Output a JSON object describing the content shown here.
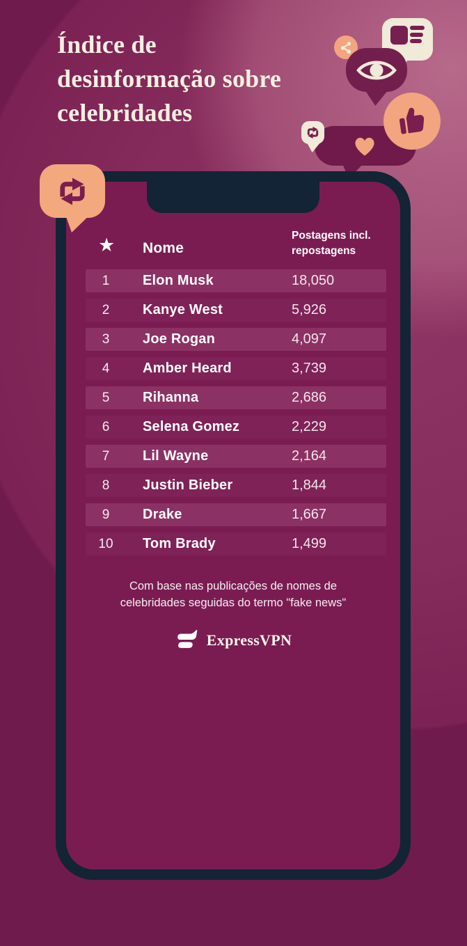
{
  "page": {
    "title_lines": [
      "Índice de",
      "desinformação sobre",
      "celebridades"
    ],
    "footnote_lines": [
      "Com base nas publicações de nomes de",
      "celebridades seguidas do termo \"fake news\""
    ],
    "brand_name": "ExpressVPN"
  },
  "table_header": {
    "name_label": "Nome",
    "value_label_line1": "Postagens incl.",
    "value_label_line2": "repostagens"
  },
  "chart_data": {
    "type": "table",
    "title": "Índice de desinformação sobre celebridades",
    "columns": [
      "Rank",
      "Nome",
      "Postagens incl. repostagens"
    ],
    "rows": [
      [
        "1",
        "Elon Musk",
        "18,050"
      ],
      [
        "2",
        "Kanye West",
        "5,926"
      ],
      [
        "3",
        "Joe Rogan",
        "4,097"
      ],
      [
        "4",
        "Amber Heard",
        "3,739"
      ],
      [
        "5",
        "Rihanna",
        "2,686"
      ],
      [
        "6",
        "Selena Gomez",
        "2,229"
      ],
      [
        "7",
        "Lil Wayne",
        "2,164"
      ],
      [
        "8",
        "Justin Bieber",
        "1,844"
      ],
      [
        "9",
        "Drake",
        "1,667"
      ],
      [
        "10",
        "Tom Brady",
        "1,499"
      ]
    ],
    "values_numeric": [
      18050,
      5926,
      4097,
      3739,
      2686,
      2229,
      2164,
      1844,
      1667,
      1499
    ],
    "source_note": "Com base nas publicações de nomes de celebridades seguidas do termo \"fake news\""
  },
  "icons": {
    "header_rank": "star-icon",
    "decorations": [
      "share-nodes-icon",
      "news-feed-icon",
      "eye-icon",
      "thumbs-up-icon",
      "repost-icon",
      "heart-icon",
      "repost-icon"
    ],
    "brand_mark": "expressvpn-logo-icon"
  },
  "colors": {
    "background_dark": "#701B4D",
    "background_circle": "#8E3565",
    "background_light_glow": "#E4A2B4",
    "phone_frame": "#122435",
    "screen": "#7A1C52",
    "row_odd": "#8C3164",
    "row_even": "#7F2257",
    "accent_orange": "#F2A57F",
    "accent_cream": "#F0EAD8",
    "bubble_magenta": "#731F4E",
    "title_cream": "#F7EFE1",
    "text_white": "#FFFFFF"
  }
}
